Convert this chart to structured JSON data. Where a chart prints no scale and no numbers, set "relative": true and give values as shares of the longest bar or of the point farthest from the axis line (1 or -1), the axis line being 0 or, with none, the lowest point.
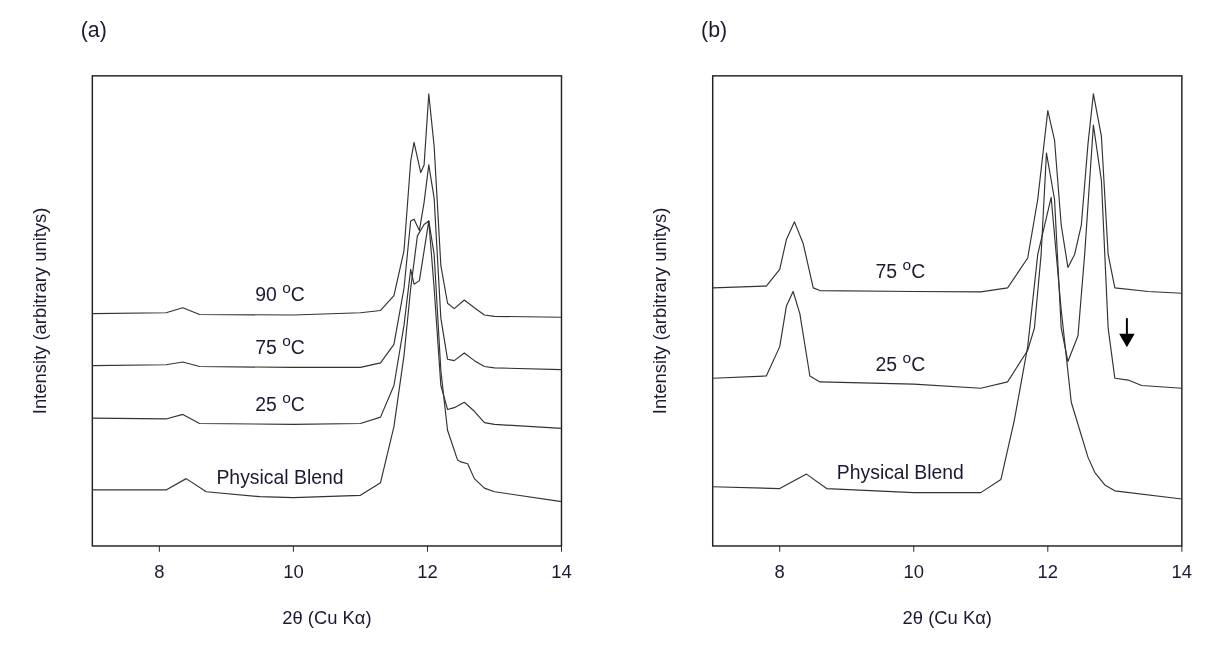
{
  "chart_data": [
    {
      "type": "line",
      "title": "(a)",
      "xlabel": "2θ (Cu Kα)",
      "ylabel": "Intensity (arbitrary unitys)",
      "relative": true,
      "xlim": [
        7,
        14
      ],
      "xticks": [
        8,
        10,
        12,
        14
      ],
      "marker": "none",
      "line_style": "solid",
      "series": [
        {
          "name": "90 $^{o}$C",
          "color": "#333333",
          "x": [
            7,
            8.1,
            8.35,
            8.6,
            10,
            11,
            11.3,
            11.5,
            11.65,
            11.75,
            11.8,
            11.9,
            11.95,
            12.02,
            12.1,
            12.2,
            12.3,
            12.4,
            12.55,
            12.7,
            12.85,
            13,
            14
          ],
          "values": [
            0.514,
            0.516,
            0.527,
            0.512,
            0.511,
            0.516,
            0.521,
            0.554,
            0.653,
            0.851,
            0.893,
            0.826,
            0.843,
            1.0,
            0.884,
            0.62,
            0.537,
            0.525,
            0.544,
            0.527,
            0.511,
            0.508,
            0.506
          ]
        },
        {
          "name": "75 $^{o}$C",
          "color": "#333333",
          "x": [
            7,
            8.1,
            8.35,
            8.6,
            10,
            11,
            11.3,
            11.5,
            11.65,
            11.75,
            11.8,
            11.88,
            11.95,
            12.02,
            12.1,
            12.2,
            12.3,
            12.4,
            12.55,
            12.7,
            12.85,
            13,
            14
          ],
          "values": [
            0.399,
            0.401,
            0.407,
            0.397,
            0.395,
            0.395,
            0.405,
            0.446,
            0.57,
            0.719,
            0.723,
            0.698,
            0.76,
            0.843,
            0.769,
            0.504,
            0.413,
            0.41,
            0.427,
            0.41,
            0.397,
            0.394,
            0.39
          ]
        },
        {
          "name": "25 $^{o}$C",
          "color": "#333333",
          "x": [
            7,
            8.1,
            8.35,
            8.6,
            10,
            11,
            11.3,
            11.5,
            11.65,
            11.75,
            11.8,
            11.88,
            11.95,
            12.02,
            12.1,
            12.2,
            12.3,
            12.4,
            12.55,
            12.7,
            12.85,
            13,
            14
          ],
          "values": [
            0.283,
            0.281,
            0.291,
            0.271,
            0.269,
            0.271,
            0.285,
            0.355,
            0.488,
            0.612,
            0.579,
            0.587,
            0.653,
            0.719,
            0.57,
            0.355,
            0.302,
            0.306,
            0.318,
            0.298,
            0.273,
            0.269,
            0.26
          ]
        },
        {
          "name": "Physical Blend",
          "color": "#333333",
          "x": [
            7,
            8.1,
            8.4,
            8.7,
            9.5,
            10,
            11,
            11.3,
            11.5,
            11.65,
            11.75,
            11.85,
            11.95,
            12.02,
            12.1,
            12.2,
            12.3,
            12.45,
            12.5,
            12.6,
            12.7,
            12.85,
            13,
            14
          ],
          "values": [
            0.124,
            0.124,
            0.149,
            0.12,
            0.109,
            0.107,
            0.112,
            0.14,
            0.264,
            0.421,
            0.57,
            0.686,
            0.711,
            0.719,
            0.645,
            0.388,
            0.256,
            0.19,
            0.186,
            0.182,
            0.149,
            0.128,
            0.12,
            0.098
          ]
        }
      ]
    },
    {
      "type": "line",
      "title": "(b)",
      "xlabel": "2θ (Cu Kα)",
      "ylabel": "Intensity (arbitrary unitys)",
      "relative": true,
      "xlim": [
        7,
        14
      ],
      "xticks": [
        8,
        10,
        12,
        14
      ],
      "marker": "none",
      "line_style": "solid",
      "series": [
        {
          "name": "75 $^{o}$C",
          "color": "#333333",
          "x": [
            7,
            7.8,
            8.0,
            8.1,
            8.22,
            8.35,
            8.5,
            8.6,
            10,
            11,
            11.4,
            11.7,
            11.85,
            12.0,
            12.1,
            12.2,
            12.3,
            12.4,
            12.5,
            12.6,
            12.68,
            12.8,
            12.9,
            13.0,
            13.5,
            14
          ],
          "values": [
            0.571,
            0.575,
            0.612,
            0.678,
            0.717,
            0.669,
            0.571,
            0.565,
            0.563,
            0.562,
            0.571,
            0.637,
            0.767,
            0.963,
            0.898,
            0.71,
            0.616,
            0.645,
            0.71,
            0.89,
            1.0,
            0.906,
            0.645,
            0.571,
            0.563,
            0.559
          ]
        },
        {
          "name": "25 $^{o}$C",
          "color": "#333333",
          "x": [
            7,
            7.8,
            8.0,
            8.1,
            8.2,
            8.3,
            8.45,
            8.6,
            10,
            11,
            11.4,
            11.7,
            11.8,
            11.9,
            11.98,
            12.1,
            12.2,
            12.3,
            12.45,
            12.55,
            12.68,
            12.8,
            12.9,
            13.0,
            13.2,
            13.4,
            14
          ],
          "values": [
            0.371,
            0.376,
            0.441,
            0.531,
            0.563,
            0.514,
            0.376,
            0.363,
            0.358,
            0.349,
            0.363,
            0.433,
            0.482,
            0.645,
            0.869,
            0.767,
            0.482,
            0.408,
            0.465,
            0.645,
            0.931,
            0.808,
            0.482,
            0.371,
            0.367,
            0.355,
            0.349
          ]
        },
        {
          "name": "Physical Blend",
          "color": "#333333",
          "x": [
            7,
            8.0,
            8.4,
            8.7,
            10,
            11,
            11.3,
            11.5,
            11.7,
            11.85,
            12.05,
            12.2,
            12.35,
            12.6,
            12.7,
            12.85,
            13,
            14
          ],
          "values": [
            0.131,
            0.127,
            0.159,
            0.127,
            0.118,
            0.118,
            0.147,
            0.278,
            0.441,
            0.645,
            0.771,
            0.522,
            0.318,
            0.196,
            0.163,
            0.135,
            0.122,
            0.104
          ]
        }
      ]
    }
  ]
}
